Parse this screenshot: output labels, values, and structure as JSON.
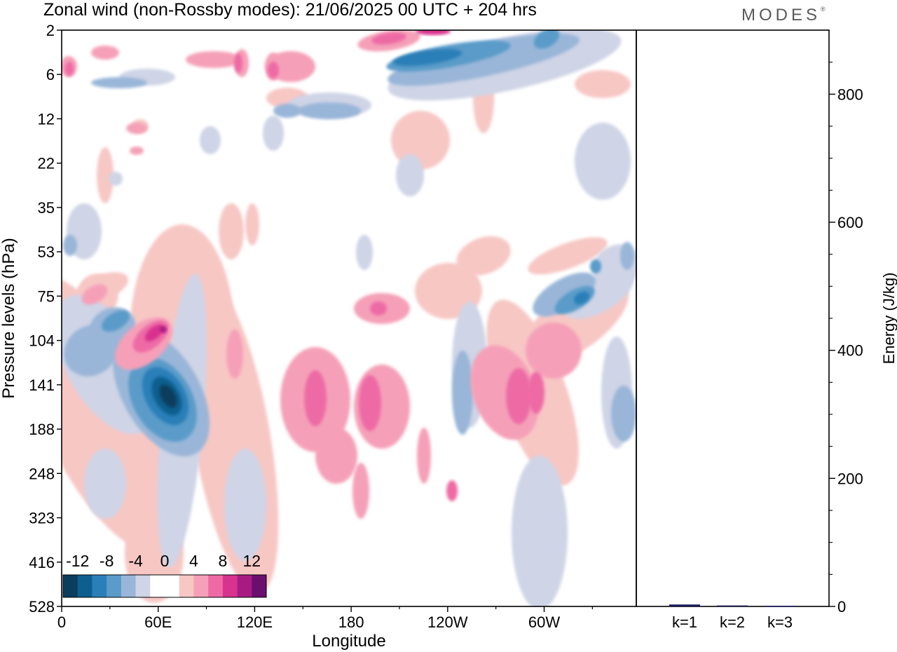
{
  "title": "Zonal wind (non-Rossby modes):  21/06/2025  00 UTC  + 204 hrs",
  "logo": {
    "text": "MODES",
    "mark": "®"
  },
  "colorbar": {
    "tick_labels": [
      "-12",
      "-8",
      "-4",
      "0",
      "4",
      "8",
      "12"
    ],
    "colors": [
      "#0b3d5c",
      "#0e5f8f",
      "#2b7fb8",
      "#5a9bc9",
      "#99b6d8",
      "#cfd4e6",
      "#ffffff",
      "#ffffff",
      "#f7c7c4",
      "#f5a0b8",
      "#ee6aa5",
      "#d8338e",
      "#a81c82",
      "#6b0f6e"
    ]
  },
  "chart_data": [
    {
      "type": "heatmap",
      "title": "Zonal wind (non-Rossby modes):  21/06/2025  00 UTC  + 204 hrs",
      "xlabel": "Longitude",
      "ylabel": "Pressure levels (hPa)",
      "x_tick_labels": [
        "0",
        "60E",
        "120E",
        "180",
        "120W",
        "60W"
      ],
      "y_tick_labels": [
        "2",
        "6",
        "12",
        "22",
        "35",
        "53",
        "75",
        "104",
        "141",
        "188",
        "248",
        "323",
        "416",
        "528"
      ],
      "color_scale": [
        -12,
        -8,
        -4,
        0,
        4,
        8,
        12
      ],
      "features": [
        {
          "lon": 60,
          "p": 141,
          "value": -14
        },
        {
          "lon": 60,
          "p": 104,
          "value": 10
        },
        {
          "lon": 30,
          "p": 75,
          "value": -6
        },
        {
          "lon": 160,
          "p": 141,
          "value": 7
        },
        {
          "lon": 290,
          "p": 141,
          "value": 8
        },
        {
          "lon": 320,
          "p": 75,
          "value": -7
        },
        {
          "lon": 225,
          "p": 4,
          "value": -10
        },
        {
          "lon": 220,
          "p": 2,
          "value": 8
        },
        {
          "lon": 5,
          "p": 6,
          "value": 6
        },
        {
          "lon": 185,
          "p": 12,
          "value": -5
        }
      ]
    },
    {
      "type": "bar",
      "categories": [
        "k=1",
        "k=2",
        "k=3"
      ],
      "values": [
        3,
        1.5,
        1
      ],
      "ylabel": "Energy (J/kg)",
      "ylim": [
        0,
        900
      ],
      "y_tick_labels": [
        "0",
        "200",
        "400",
        "600",
        "800"
      ],
      "bar_color": "#1a1a5c"
    }
  ]
}
